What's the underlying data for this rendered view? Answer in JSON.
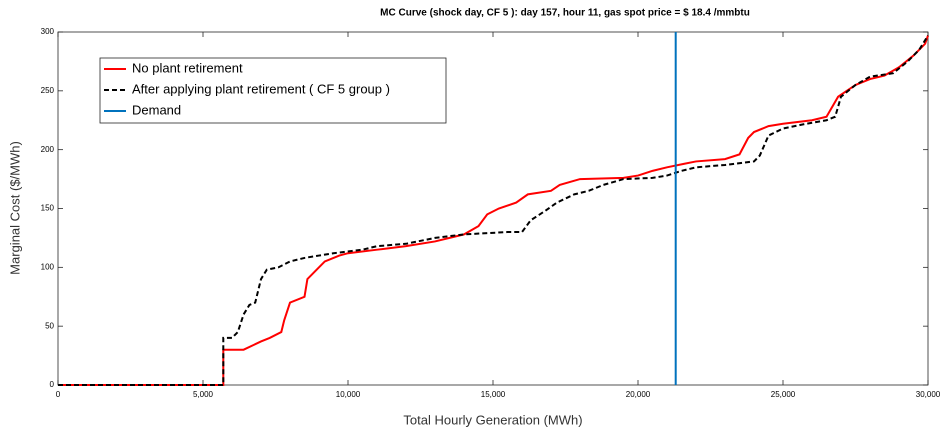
{
  "chart_data": {
    "type": "line",
    "title": "MC Curve (shock day, CF 5 ): day 157, hour 11, gas spot price = $ 18.4 /mmbtu",
    "x_label": "Total Hourly Generation (MWh)",
    "y_label": "Marginal Cost ($/MWh)",
    "xlim": [
      0,
      30000
    ],
    "ylim": [
      0,
      300
    ],
    "xticks": [
      0,
      {
        "value": 5000,
        "label": "5,000"
      },
      {
        "value": 10000,
        "label": "10,000"
      },
      {
        "value": 15000,
        "label": "15,000"
      },
      {
        "value": 20000,
        "label": "20,000"
      },
      {
        "value": 25000,
        "label": "25,000"
      },
      {
        "value": 30000,
        "label": "30,000"
      }
    ],
    "yticks": [
      0,
      50,
      100,
      150,
      200,
      250,
      300
    ],
    "legend": "upper left",
    "series": [
      {
        "name": "No plant retirement",
        "color": "#ff0000",
        "dash": "solid",
        "x": [
          0,
          5700,
          5700,
          6400,
          7000,
          7300,
          7700,
          7800,
          8000,
          8500,
          8600,
          9000,
          9200,
          9700,
          10000,
          11000,
          12000,
          13000,
          14000,
          14500,
          14800,
          15200,
          15800,
          16200,
          17000,
          17300,
          18000,
          19500,
          20000,
          20500,
          21000,
          21600,
          22000,
          23000,
          23500,
          23800,
          24000,
          24500,
          25000,
          26000,
          26500,
          26900,
          27200,
          27500,
          28000,
          28500,
          29000,
          29500,
          29900,
          30000
        ],
        "values": [
          0,
          0,
          30,
          30,
          37,
          40,
          45,
          55,
          70,
          75,
          90,
          100,
          105,
          110,
          112,
          115,
          118,
          122,
          128,
          135,
          145,
          150,
          155,
          162,
          165,
          170,
          175,
          176,
          178,
          182,
          185,
          188,
          190,
          192,
          196,
          210,
          215,
          220,
          222,
          225,
          228,
          245,
          250,
          255,
          260,
          263,
          270,
          280,
          290,
          297
        ]
      },
      {
        "name": "After applying plant retirement ( CF 5 group )",
        "color": "#000000",
        "dash": "dashed",
        "x": [
          0,
          5700,
          5700,
          6000,
          6200,
          6400,
          6600,
          6800,
          7000,
          7200,
          7600,
          8000,
          8500,
          9000,
          9500,
          10500,
          11000,
          12000,
          13000,
          14000,
          15500,
          16000,
          16300,
          16800,
          17200,
          17800,
          18300,
          18800,
          19500,
          20500,
          21000,
          21500,
          22000,
          23000,
          24000,
          24200,
          24500,
          25000,
          25800,
          26500,
          26800,
          27000,
          27500,
          28000,
          28800,
          29300,
          29700,
          30000
        ],
        "values": [
          0,
          0,
          40,
          40,
          45,
          60,
          68,
          70,
          90,
          98,
          100,
          105,
          108,
          110,
          112,
          115,
          118,
          120,
          125,
          128,
          130,
          130,
          140,
          148,
          155,
          162,
          165,
          170,
          175,
          176,
          178,
          182,
          185,
          187,
          190,
          195,
          212,
          218,
          222,
          225,
          228,
          245,
          255,
          262,
          265,
          275,
          285,
          297
        ]
      }
    ],
    "vlines": [
      {
        "name": "Demand",
        "color": "#0072bd",
        "x": 21300
      }
    ]
  }
}
